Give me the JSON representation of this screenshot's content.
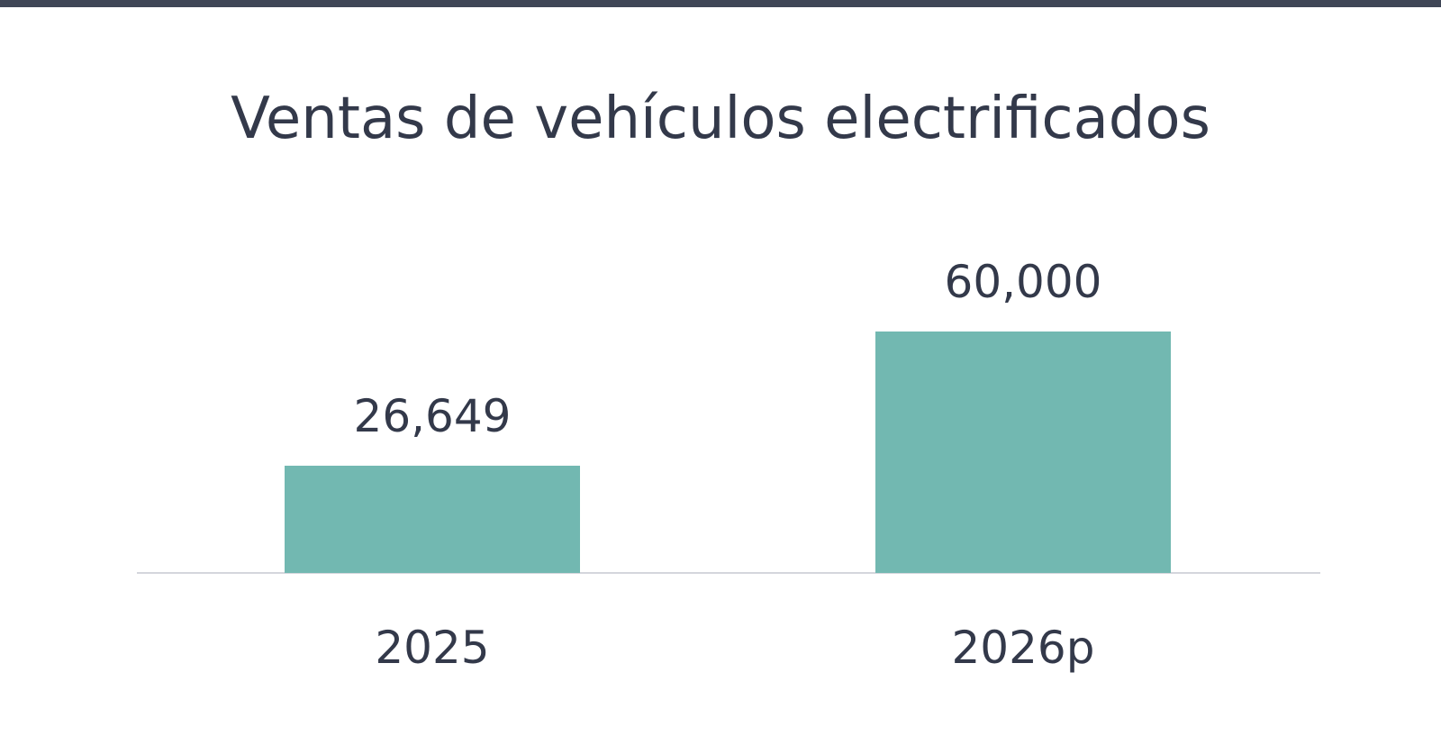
{
  "colors": {
    "top_rule": "#3f4656",
    "text": "#33394a",
    "bar": "#72b8b1",
    "baseline": "#d4d6dc"
  },
  "chart_data": {
    "type": "bar",
    "title": "Ventas de vehículos electrificados",
    "xlabel": "",
    "ylabel": "",
    "categories": [
      "2025",
      "2026p"
    ],
    "values": [
      26649,
      60000
    ],
    "value_labels": [
      "26,649",
      "60,000"
    ],
    "ylim": [
      0,
      110000
    ],
    "grid": false,
    "legend": "none"
  }
}
